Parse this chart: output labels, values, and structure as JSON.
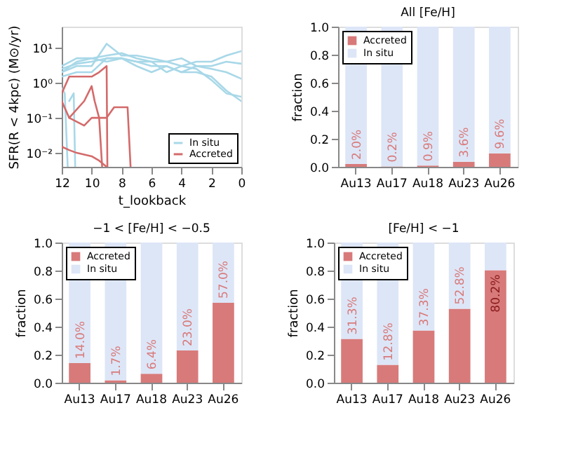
{
  "chart_data": [
    {
      "type": "line",
      "xlabel": "t_lookback",
      "ylabel": "SFR(R < 4kpc) (M⊙/yr)",
      "log": "y",
      "xlim": [
        12,
        0
      ],
      "xticks": [
        12,
        10,
        8,
        6,
        4,
        2,
        0
      ],
      "ylim": [
        0.004,
        40
      ],
      "yticks": [
        {
          "value": 0.01,
          "label": "10⁻²"
        },
        {
          "value": 0.1,
          "label": "10⁻¹"
        },
        {
          "value": 1,
          "label": "10⁰"
        },
        {
          "value": 10,
          "label": "10¹"
        }
      ],
      "legend": "bottom right",
      "grid": false,
      "series": [
        {
          "name": "In situ",
          "color": "#a8d8e8",
          "x": [
            12,
            11,
            10,
            9,
            8,
            7,
            6,
            5,
            4,
            3,
            2,
            1,
            0
          ],
          "values": [
            2,
            4,
            5,
            4,
            5,
            4,
            4,
            4,
            3,
            4,
            4,
            6,
            8
          ]
        },
        {
          "color": "#a8d8e8",
          "x": [
            12,
            11,
            10,
            9,
            8,
            7,
            6,
            5,
            4,
            3,
            2,
            1,
            0
          ],
          "values": [
            2,
            3,
            3,
            13,
            6,
            6,
            5,
            4,
            5,
            3,
            3,
            4,
            3.5
          ]
        },
        {
          "color": "#a8d8e8",
          "x": [
            12,
            11,
            10,
            9,
            8,
            7,
            6,
            5,
            4,
            3,
            2,
            1,
            0
          ],
          "values": [
            1.5,
            2,
            2,
            5,
            5,
            4,
            3,
            3,
            2,
            2,
            1.5,
            0.6,
            0.3
          ]
        },
        {
          "color": "#a8d8e8",
          "x": [
            12,
            11,
            10,
            9,
            8,
            7,
            6,
            5,
            4,
            3,
            2,
            1,
            0
          ],
          "values": [
            3,
            5,
            5,
            6,
            7,
            5,
            4,
            2,
            3,
            2.5,
            1.2,
            0.5,
            0.4
          ]
        },
        {
          "color": "#a8d8e8",
          "x": [
            12,
            11,
            10,
            9,
            8,
            7,
            6,
            5,
            4,
            3,
            2,
            1,
            0
          ],
          "values": [
            2.5,
            3.5,
            4,
            5,
            5,
            3,
            2,
            3,
            2,
            3,
            2.5,
            2,
            1.3
          ]
        },
        {
          "color": "#a8d8e8",
          "x": [
            12,
            11.8,
            11.6
          ],
          "values": [
            0.7,
            0.5,
            0.004
          ]
        },
        {
          "color": "#a8d8e8",
          "x": [
            11.5,
            11.2,
            11.1
          ],
          "values": [
            0.3,
            0.5,
            0.004
          ]
        },
        {
          "name": "Accreted",
          "color": "#d46a6a",
          "x": [
            12,
            11.5,
            10,
            9.5,
            9,
            8.95
          ],
          "values": [
            0.5,
            1.5,
            1.5,
            2,
            3,
            0.004
          ]
        },
        {
          "color": "#d46a6a",
          "x": [
            12,
            11.5,
            10.5,
            10,
            9.8,
            9.5,
            9.3
          ],
          "values": [
            0.3,
            0.1,
            0.3,
            0.8,
            0.3,
            0.1,
            0.004
          ]
        },
        {
          "color": "#d46a6a",
          "x": [
            11.5,
            10.5,
            10,
            9,
            8.5,
            8,
            7.6,
            7.4
          ],
          "values": [
            0.1,
            0.06,
            0.1,
            0.1,
            0.2,
            0.2,
            0.2,
            0.004
          ]
        },
        {
          "color": "#d46a6a",
          "x": [
            12,
            11.5,
            11,
            10,
            9.5,
            9
          ],
          "values": [
            0.015,
            0.012,
            0.01,
            0.008,
            0.006,
            0.004
          ]
        }
      ]
    },
    {
      "type": "bar",
      "title": "All [Fe/H]",
      "ylabel": "fraction",
      "stacked": true,
      "legend": "top left",
      "grid": false,
      "ylim": [
        0,
        1
      ],
      "yticks": [
        {
          "value": 0,
          "label": "0.0"
        },
        {
          "value": 0.2,
          "label": "0.2"
        },
        {
          "value": 0.4,
          "label": "0.4"
        },
        {
          "value": 0.6,
          "label": "0.6"
        },
        {
          "value": 0.8,
          "label": "0.8"
        },
        {
          "value": 1,
          "label": "1.0"
        }
      ],
      "categories": [
        "Au13",
        "Au17",
        "Au18",
        "Au23",
        "Au26"
      ],
      "series": [
        {
          "name": "Accreted",
          "color": "#d87a7a",
          "values": [
            0.02,
            0.002,
            0.009,
            0.036,
            0.096
          ],
          "value_labels": [
            "2.0%",
            "0.2%",
            "0.9%",
            "3.6%",
            "9.6%"
          ]
        },
        {
          "name": "In situ",
          "color": "#dde6f7",
          "values": [
            0.98,
            0.998,
            0.991,
            0.964,
            0.904
          ]
        }
      ]
    },
    {
      "type": "bar",
      "title": "−1 < [Fe/H] < −0.5",
      "ylabel": "fraction",
      "stacked": true,
      "legend": "top left",
      "grid": false,
      "ylim": [
        0,
        1
      ],
      "yticks": [
        {
          "value": 0,
          "label": "0.0"
        },
        {
          "value": 0.2,
          "label": "0.2"
        },
        {
          "value": 0.4,
          "label": "0.4"
        },
        {
          "value": 0.6,
          "label": "0.6"
        },
        {
          "value": 0.8,
          "label": "0.8"
        },
        {
          "value": 1,
          "label": "1.0"
        }
      ],
      "categories": [
        "Au13",
        "Au17",
        "Au18",
        "Au23",
        "Au26"
      ],
      "series": [
        {
          "name": "Accreted",
          "color": "#d87a7a",
          "values": [
            0.14,
            0.017,
            0.064,
            0.23,
            0.57
          ],
          "value_labels": [
            "14.0%",
            "1.7%",
            "6.4%",
            "23.0%",
            "57.0%"
          ]
        },
        {
          "name": "In situ",
          "color": "#dde6f7",
          "values": [
            0.86,
            0.983,
            0.936,
            0.77,
            0.43
          ]
        }
      ]
    },
    {
      "type": "bar",
      "title": "[Fe/H] < −1",
      "ylabel": "fraction",
      "stacked": true,
      "legend": "top left",
      "grid": false,
      "ylim": [
        0,
        1
      ],
      "yticks": [
        {
          "value": 0,
          "label": "0.0"
        },
        {
          "value": 0.2,
          "label": "0.2"
        },
        {
          "value": 0.4,
          "label": "0.4"
        },
        {
          "value": 0.6,
          "label": "0.6"
        },
        {
          "value": 0.8,
          "label": "0.8"
        },
        {
          "value": 1,
          "label": "1.0"
        }
      ],
      "categories": [
        "Au13",
        "Au17",
        "Au18",
        "Au23",
        "Au26"
      ],
      "series": [
        {
          "name": "Accreted",
          "color": "#d87a7a",
          "values": [
            0.313,
            0.128,
            0.373,
            0.528,
            0.802
          ],
          "value_labels": [
            "31.3%",
            "12.8%",
            "37.3%",
            "52.8%",
            "80.2%"
          ]
        },
        {
          "name": "In situ",
          "color": "#dde6f7",
          "values": [
            0.687,
            0.872,
            0.627,
            0.472,
            0.198
          ]
        }
      ]
    }
  ]
}
